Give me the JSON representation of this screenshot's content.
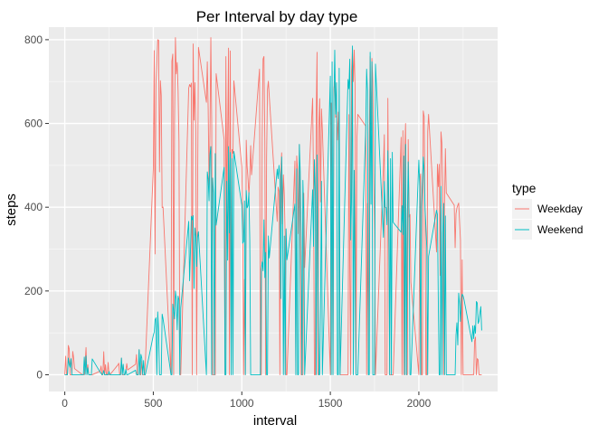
{
  "colors": {
    "panel_bg": "#ebebeb",
    "grid_major": "#ffffff",
    "grid_minor": "#f5f5f5",
    "weekday": "#F8766D",
    "weekend": "#00BFC4",
    "legend_key_bg": "#f2f2f2"
  },
  "chart_data": {
    "type": "line",
    "title": "Per Interval by day type",
    "xlabel": "interval",
    "ylabel": "steps",
    "xlim": [
      -90,
      2445
    ],
    "ylim": [
      -40,
      830
    ],
    "xticks": [
      0,
      500,
      1000,
      1500,
      2000
    ],
    "yticks": [
      0,
      200,
      400,
      600,
      800
    ],
    "grid": true,
    "legend": {
      "title": "type",
      "position": "right"
    },
    "hour_blocks": [
      {
        "hour": 0,
        "weekday": 70,
        "weekend": 40
      },
      {
        "hour": 1,
        "weekday": 65,
        "weekend": 45
      },
      {
        "hour": 2,
        "weekday": 55,
        "weekend": 10
      },
      {
        "hour": 3,
        "weekday": 40,
        "weekend": 40
      },
      {
        "hour": 4,
        "weekday": 60,
        "weekend": 60
      },
      {
        "hour": 5,
        "weekday": 800,
        "weekend": 150
      },
      {
        "hour": 6,
        "weekday": 805,
        "weekend": 200
      },
      {
        "hour": 7,
        "weekday": 790,
        "weekend": 380
      },
      {
        "hour": 8,
        "weekday": 805,
        "weekend": 545
      },
      {
        "hour": 9,
        "weekday": 780,
        "weekend": 545
      },
      {
        "hour": 10,
        "weekday": 560,
        "weekend": 440
      },
      {
        "hour": 11,
        "weekday": 760,
        "weekend": 370
      },
      {
        "hour": 12,
        "weekday": 530,
        "weekend": 520
      },
      {
        "hour": 13,
        "weekday": 550,
        "weekend": 550
      },
      {
        "hour": 14,
        "weekday": 770,
        "weekend": 525
      },
      {
        "hour": 15,
        "weekday": 700,
        "weekend": 775
      },
      {
        "hour": 16,
        "weekday": 780,
        "weekend": 785
      },
      {
        "hour": 17,
        "weekday": 760,
        "weekend": 770
      },
      {
        "hour": 18,
        "weekday": 660,
        "weekend": 535
      },
      {
        "hour": 19,
        "weekday": 600,
        "weekend": 550
      },
      {
        "hour": 20,
        "weekday": 630,
        "weekend": 520
      },
      {
        "hour": 21,
        "weekday": 580,
        "weekend": 450
      },
      {
        "hour": 22,
        "weekday": 410,
        "weekend": 195
      },
      {
        "hour": 23,
        "weekday": 90,
        "weekend": 175
      }
    ],
    "series": [
      {
        "name": "Weekday",
        "color": "#F8766D"
      },
      {
        "name": "Weekend",
        "color": "#00BFC4"
      }
    ]
  }
}
